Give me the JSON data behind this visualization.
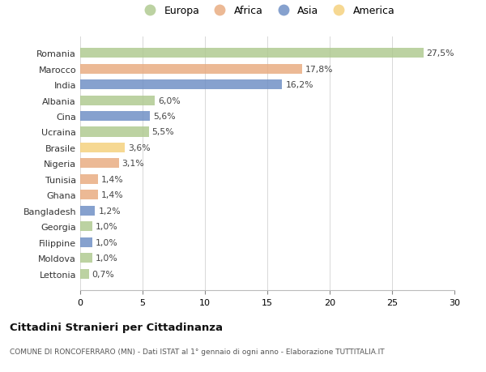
{
  "countries": [
    "Romania",
    "Marocco",
    "India",
    "Albania",
    "Cina",
    "Ucraina",
    "Brasile",
    "Nigeria",
    "Tunisia",
    "Ghana",
    "Bangladesh",
    "Georgia",
    "Filippine",
    "Moldova",
    "Lettonia"
  ],
  "values": [
    27.5,
    17.8,
    16.2,
    6.0,
    5.6,
    5.5,
    3.6,
    3.1,
    1.4,
    1.4,
    1.2,
    1.0,
    1.0,
    1.0,
    0.7
  ],
  "labels": [
    "27,5%",
    "17,8%",
    "16,2%",
    "6,0%",
    "5,6%",
    "5,5%",
    "3,6%",
    "3,1%",
    "1,4%",
    "1,4%",
    "1,2%",
    "1,0%",
    "1,0%",
    "1,0%",
    "0,7%"
  ],
  "continents": [
    "Europa",
    "Africa",
    "Asia",
    "Europa",
    "Asia",
    "Europa",
    "America",
    "Africa",
    "Africa",
    "Africa",
    "Asia",
    "Europa",
    "Asia",
    "Europa",
    "Europa"
  ],
  "colors": {
    "Europa": "#aec98e",
    "Africa": "#e8aa7e",
    "Asia": "#6b8dc4",
    "America": "#f5d07a"
  },
  "legend_order": [
    "Europa",
    "Africa",
    "Asia",
    "America"
  ],
  "title": "Cittadini Stranieri per Cittadinanza",
  "subtitle": "COMUNE DI RONCOFERRARO (MN) - Dati ISTAT al 1° gennaio di ogni anno - Elaborazione TUTTITALIA.IT",
  "xlim": [
    0,
    30
  ],
  "xticks": [
    0,
    5,
    10,
    15,
    20,
    25,
    30
  ],
  "background_color": "#ffffff",
  "grid_color": "#d8d8d8",
  "bar_alpha": 0.82
}
